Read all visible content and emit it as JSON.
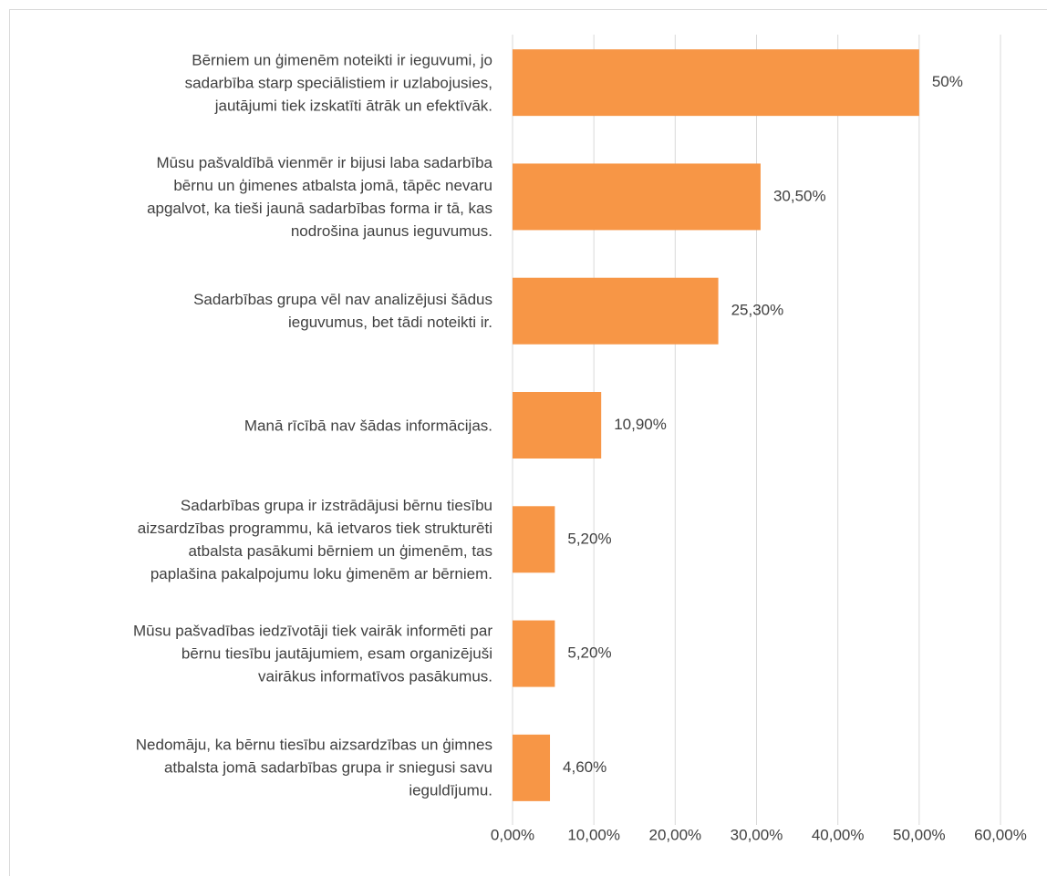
{
  "chart_data": {
    "type": "bar",
    "orientation": "horizontal",
    "categories": [
      "Bērniem un ģimenēm noteikti ir ieguvumi, jo\nsadarbība starp speciālistiem ir uzlabojusies,\njautājumi tiek izskatīti ātrāk un efektīvāk.",
      "Mūsu pašvaldībā vienmēr ir bijusi laba sadarbība\nbērnu un ģimenes atbalsta jomā, tāpēc nevaru\napgalvot, ka tieši jaunā sadarbības forma ir tā, kas\nnodrošina jaunus ieguvumus.",
      "Sadarbības grupa vēl nav analizējusi šādus\nieguvumus, bet tādi noteikti ir.",
      "Manā rīcībā nav šādas informācijas.",
      "Sadarbības grupa ir izstrādājusi bērnu tiesību\naizsardzības programmu, kā ietvaros tiek strukturēti\natbalsta pasākumi bērniem un ģimenēm, tas\npaplašina pakalpojumu loku ģimenēm ar bērniem.",
      "Mūsu pašvadības iedzīvotāji tiek vairāk informēti par\nbērnu tiesību jautājumiem, esam organizējuši\nvairākus informatīvos pasākumus.",
      "Nedomāju, ka bērnu tiesību aizsardzības un ģimnes\natbalsta jomā sadarbības grupa ir sniegusi savu\nieguldījumu."
    ],
    "values": [
      50,
      30.5,
      25.3,
      10.9,
      5.2,
      5.2,
      4.6
    ],
    "value_labels": [
      "50%",
      "30,50%",
      "25,30%",
      "10,90%",
      "5,20%",
      "5,20%",
      "4,60%"
    ],
    "color": "#f79646",
    "xlim": [
      0,
      60
    ],
    "xticks": [
      {
        "value": 0,
        "label": "0,00%"
      },
      {
        "value": 10,
        "label": "10,00%"
      },
      {
        "value": 20,
        "label": "20,00%"
      },
      {
        "value": 30,
        "label": "30,00%"
      },
      {
        "value": 40,
        "label": "40,00%"
      },
      {
        "value": 50,
        "label": "50,00%"
      },
      {
        "value": 60,
        "label": "60,00%"
      }
    ],
    "grid": true
  }
}
